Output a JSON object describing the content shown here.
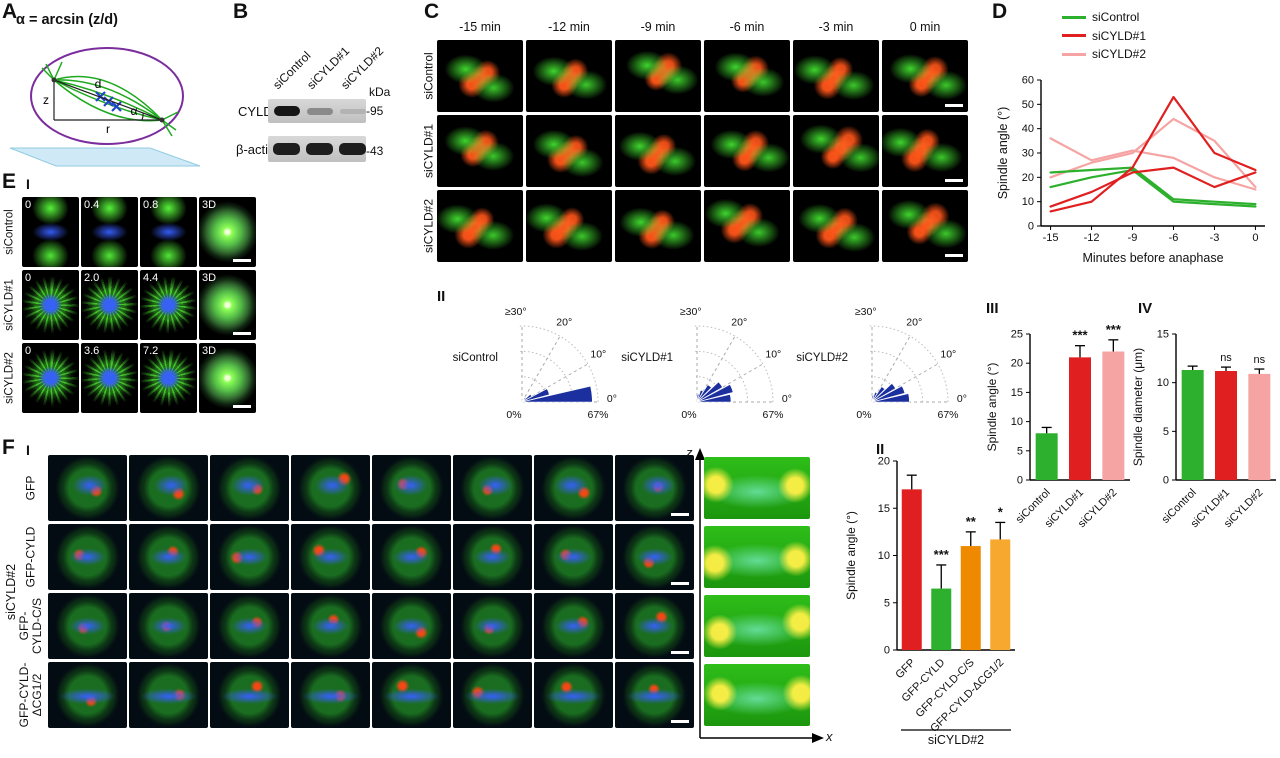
{
  "panelA": {
    "label": "A",
    "formula": "α = arcsin (z/d)",
    "labels": {
      "z": "z",
      "d": "d",
      "r": "r",
      "alpha": "α"
    }
  },
  "panelB": {
    "label": "B",
    "lanes": [
      "siControl",
      "siCYLD#1",
      "siCYLD#2"
    ],
    "kda": "kDa",
    "bands": [
      {
        "name": "CYLD",
        "marker": "-95"
      },
      {
        "name": "β-actin",
        "marker": "-43"
      }
    ]
  },
  "panelC": {
    "label": "C",
    "part2_label": "II",
    "timepoints": [
      "-15 min",
      "-12 min",
      "-9 min",
      "-6 min",
      "-3 min",
      "0 min"
    ],
    "rows": [
      "siControl",
      "siCYLD#1",
      "siCYLD#2"
    ]
  },
  "panelD": {
    "label": "D"
  },
  "panelIII": {
    "label": "III"
  },
  "panelIV": {
    "label": "IV"
  },
  "panelE": {
    "label": "E",
    "part_label": "I",
    "rows": [
      {
        "name": "siControl",
        "frames": [
          "0",
          "0.4",
          "0.8",
          "3D"
        ]
      },
      {
        "name": "siCYLD#1",
        "frames": [
          "0",
          "2.0",
          "4.4",
          "3D"
        ]
      },
      {
        "name": "siCYLD#2",
        "frames": [
          "0",
          "3.6",
          "7.2",
          "3D"
        ]
      }
    ]
  },
  "panelF": {
    "label": "F",
    "part_label": "I",
    "part2_label": "II",
    "group_label": "siCYLD#2",
    "rows": [
      {
        "lines": [
          "GFP"
        ]
      },
      {
        "lines": [
          "GFP-CYLD"
        ]
      },
      {
        "lines": [
          "GFP-",
          "CYLD-C/S"
        ]
      },
      {
        "lines": [
          "GFP-CYLD-",
          "ΔCG1/2"
        ]
      }
    ],
    "axes": {
      "z": "z",
      "x": "x"
    }
  },
  "chart_data": [
    {
      "id": "D",
      "type": "line",
      "ylabel": "Spindle angle (°)",
      "xlabel": "Minutes before anaphase",
      "xlim": [
        -15.7,
        0.7
      ],
      "ylim": [
        0,
        60
      ],
      "yticks": [
        0,
        10,
        20,
        30,
        40,
        50,
        60
      ],
      "xticks": [
        -15,
        -12,
        -9,
        -6,
        -3,
        0
      ],
      "x": [
        -15,
        -12,
        -9,
        -6,
        -3,
        0
      ],
      "legend": [
        {
          "label": "siControl",
          "color": "#2db02d"
        },
        {
          "label": "siCYLD#1",
          "color": "#e02020"
        },
        {
          "label": "siCYLD#2",
          "color": "#f6a3a3"
        }
      ],
      "series": [
        {
          "name": "siControl-1",
          "color": "#2db02d",
          "values": [
            22,
            23,
            24,
            11,
            10,
            9
          ]
        },
        {
          "name": "siControl-2",
          "color": "#2db02d",
          "values": [
            16,
            20,
            23,
            10,
            9,
            8
          ]
        },
        {
          "name": "siCYLD#1-1",
          "color": "#e02020",
          "values": [
            6,
            10,
            24,
            53,
            30,
            23
          ]
        },
        {
          "name": "siCYLD#1-2",
          "color": "#e02020",
          "values": [
            8,
            14,
            22,
            24,
            16,
            22
          ]
        },
        {
          "name": "siCYLD#2-1",
          "color": "#f6a3a3",
          "values": [
            36,
            27,
            31,
            28,
            20,
            15
          ]
        },
        {
          "name": "siCYLD#2-2",
          "color": "#f6a3a3",
          "values": [
            20,
            26,
            30,
            44,
            35,
            16
          ]
        }
      ]
    },
    {
      "id": "III",
      "type": "bar",
      "ylabel": "Spindle angle (°)",
      "ylim": [
        0,
        25
      ],
      "yticks": [
        0,
        5,
        10,
        15,
        20,
        25
      ],
      "categories": [
        "siControl",
        "siCYLD#1",
        "siCYLD#2"
      ],
      "values": [
        8,
        21,
        22
      ],
      "errors": [
        1,
        2,
        2
      ],
      "annotations": [
        "",
        "***",
        "***"
      ],
      "colors": [
        "#2db02d",
        "#e02020",
        "#f6a3a3"
      ]
    },
    {
      "id": "IV",
      "type": "bar",
      "ylabel": "Spindle diameter (μm)",
      "ylim": [
        0,
        15
      ],
      "yticks": [
        0,
        5,
        10,
        15
      ],
      "categories": [
        "siControl",
        "siCYLD#1",
        "siCYLD#2"
      ],
      "values": [
        11.3,
        11.2,
        10.9
      ],
      "errors": [
        0.4,
        0.4,
        0.5
      ],
      "annotations": [
        "",
        "ns",
        "ns"
      ],
      "colors": [
        "#2db02d",
        "#e02020",
        "#f6a3a3"
      ]
    },
    {
      "id": "F2",
      "type": "bar",
      "ylabel": "Spindle angle (°)",
      "ylim": [
        0,
        20
      ],
      "yticks": [
        0,
        5,
        10,
        15,
        20
      ],
      "categories": [
        "GFP",
        "GFP-CYLD",
        "GFP-CYLD-C/S",
        "GFP-CYLD-ΔCG1/2"
      ],
      "values": [
        17,
        6.5,
        11,
        11.7
      ],
      "errors": [
        1.5,
        2.5,
        1.5,
        1.8
      ],
      "annotations": [
        "",
        "***",
        "**",
        "*"
      ],
      "colors": [
        "#e02020",
        "#2db02d",
        "#ef8a00",
        "#f7a82e"
      ],
      "group_label": "siCYLD#2"
    },
    {
      "id": "rose-siControl",
      "type": "rose",
      "condition": "siControl",
      "max_percent": 67,
      "bin_width_deg": 5,
      "color": "#1b2f9e",
      "angle_labels": [
        "≥30°",
        "20°",
        "10°",
        "0°"
      ],
      "radial_labels": [
        "0%",
        "67%"
      ],
      "bins": [
        62,
        25,
        10,
        5,
        3,
        2
      ]
    },
    {
      "id": "rose-siCYLD1",
      "type": "rose",
      "condition": "siCYLD#1",
      "max_percent": 67,
      "bin_width_deg": 5,
      "color": "#1b2f9e",
      "angle_labels": [
        "≥30°",
        "20°",
        "10°",
        "0°"
      ],
      "radial_labels": [
        "0%",
        "67%"
      ],
      "bins": [
        30,
        33,
        26,
        18,
        11,
        7
      ]
    },
    {
      "id": "rose-siCYLD2",
      "type": "rose",
      "condition": "siCYLD#2",
      "max_percent": 67,
      "bin_width_deg": 5,
      "color": "#1b2f9e",
      "angle_labels": [
        "≥30°",
        "20°",
        "10°",
        "0°"
      ],
      "radial_labels": [
        "0%",
        "67%"
      ],
      "bins": [
        33,
        30,
        24,
        16,
        9,
        6
      ]
    }
  ]
}
